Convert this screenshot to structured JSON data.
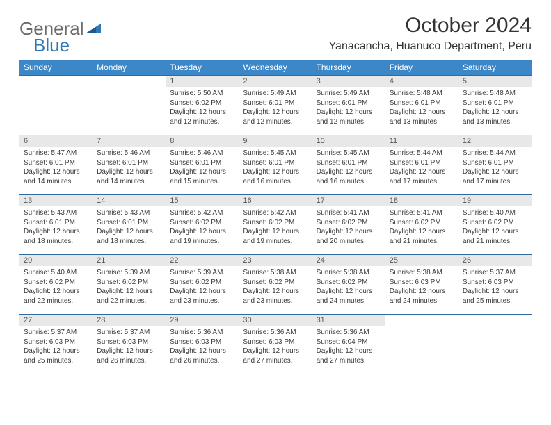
{
  "logo": {
    "part1": "General",
    "part2": "Blue"
  },
  "title": "October 2024",
  "location": "Yanacancha, Huanuco Department, Peru",
  "colors": {
    "header_bg": "#3b87c8",
    "header_text": "#ffffff",
    "daynum_bg": "#e8e8e8",
    "rule": "#2f6aa0",
    "logo_gray": "#6b6b6b",
    "logo_blue": "#2f79b9"
  },
  "dayNames": [
    "Sunday",
    "Monday",
    "Tuesday",
    "Wednesday",
    "Thursday",
    "Friday",
    "Saturday"
  ],
  "weeks": [
    [
      {
        "n": "",
        "sr": "",
        "ss": "",
        "dl": ""
      },
      {
        "n": "",
        "sr": "",
        "ss": "",
        "dl": ""
      },
      {
        "n": "1",
        "sr": "5:50 AM",
        "ss": "6:02 PM",
        "dl": "12 hours and 12 minutes."
      },
      {
        "n": "2",
        "sr": "5:49 AM",
        "ss": "6:01 PM",
        "dl": "12 hours and 12 minutes."
      },
      {
        "n": "3",
        "sr": "5:49 AM",
        "ss": "6:01 PM",
        "dl": "12 hours and 12 minutes."
      },
      {
        "n": "4",
        "sr": "5:48 AM",
        "ss": "6:01 PM",
        "dl": "12 hours and 13 minutes."
      },
      {
        "n": "5",
        "sr": "5:48 AM",
        "ss": "6:01 PM",
        "dl": "12 hours and 13 minutes."
      }
    ],
    [
      {
        "n": "6",
        "sr": "5:47 AM",
        "ss": "6:01 PM",
        "dl": "12 hours and 14 minutes."
      },
      {
        "n": "7",
        "sr": "5:46 AM",
        "ss": "6:01 PM",
        "dl": "12 hours and 14 minutes."
      },
      {
        "n": "8",
        "sr": "5:46 AM",
        "ss": "6:01 PM",
        "dl": "12 hours and 15 minutes."
      },
      {
        "n": "9",
        "sr": "5:45 AM",
        "ss": "6:01 PM",
        "dl": "12 hours and 16 minutes."
      },
      {
        "n": "10",
        "sr": "5:45 AM",
        "ss": "6:01 PM",
        "dl": "12 hours and 16 minutes."
      },
      {
        "n": "11",
        "sr": "5:44 AM",
        "ss": "6:01 PM",
        "dl": "12 hours and 17 minutes."
      },
      {
        "n": "12",
        "sr": "5:44 AM",
        "ss": "6:01 PM",
        "dl": "12 hours and 17 minutes."
      }
    ],
    [
      {
        "n": "13",
        "sr": "5:43 AM",
        "ss": "6:01 PM",
        "dl": "12 hours and 18 minutes."
      },
      {
        "n": "14",
        "sr": "5:43 AM",
        "ss": "6:01 PM",
        "dl": "12 hours and 18 minutes."
      },
      {
        "n": "15",
        "sr": "5:42 AM",
        "ss": "6:02 PM",
        "dl": "12 hours and 19 minutes."
      },
      {
        "n": "16",
        "sr": "5:42 AM",
        "ss": "6:02 PM",
        "dl": "12 hours and 19 minutes."
      },
      {
        "n": "17",
        "sr": "5:41 AM",
        "ss": "6:02 PM",
        "dl": "12 hours and 20 minutes."
      },
      {
        "n": "18",
        "sr": "5:41 AM",
        "ss": "6:02 PM",
        "dl": "12 hours and 21 minutes."
      },
      {
        "n": "19",
        "sr": "5:40 AM",
        "ss": "6:02 PM",
        "dl": "12 hours and 21 minutes."
      }
    ],
    [
      {
        "n": "20",
        "sr": "5:40 AM",
        "ss": "6:02 PM",
        "dl": "12 hours and 22 minutes."
      },
      {
        "n": "21",
        "sr": "5:39 AM",
        "ss": "6:02 PM",
        "dl": "12 hours and 22 minutes."
      },
      {
        "n": "22",
        "sr": "5:39 AM",
        "ss": "6:02 PM",
        "dl": "12 hours and 23 minutes."
      },
      {
        "n": "23",
        "sr": "5:38 AM",
        "ss": "6:02 PM",
        "dl": "12 hours and 23 minutes."
      },
      {
        "n": "24",
        "sr": "5:38 AM",
        "ss": "6:02 PM",
        "dl": "12 hours and 24 minutes."
      },
      {
        "n": "25",
        "sr": "5:38 AM",
        "ss": "6:03 PM",
        "dl": "12 hours and 24 minutes."
      },
      {
        "n": "26",
        "sr": "5:37 AM",
        "ss": "6:03 PM",
        "dl": "12 hours and 25 minutes."
      }
    ],
    [
      {
        "n": "27",
        "sr": "5:37 AM",
        "ss": "6:03 PM",
        "dl": "12 hours and 25 minutes."
      },
      {
        "n": "28",
        "sr": "5:37 AM",
        "ss": "6:03 PM",
        "dl": "12 hours and 26 minutes."
      },
      {
        "n": "29",
        "sr": "5:36 AM",
        "ss": "6:03 PM",
        "dl": "12 hours and 26 minutes."
      },
      {
        "n": "30",
        "sr": "5:36 AM",
        "ss": "6:03 PM",
        "dl": "12 hours and 27 minutes."
      },
      {
        "n": "31",
        "sr": "5:36 AM",
        "ss": "6:04 PM",
        "dl": "12 hours and 27 minutes."
      },
      {
        "n": "",
        "sr": "",
        "ss": "",
        "dl": ""
      },
      {
        "n": "",
        "sr": "",
        "ss": "",
        "dl": ""
      }
    ]
  ],
  "labels": {
    "sunrise": "Sunrise:",
    "sunset": "Sunset:",
    "daylight": "Daylight:"
  }
}
